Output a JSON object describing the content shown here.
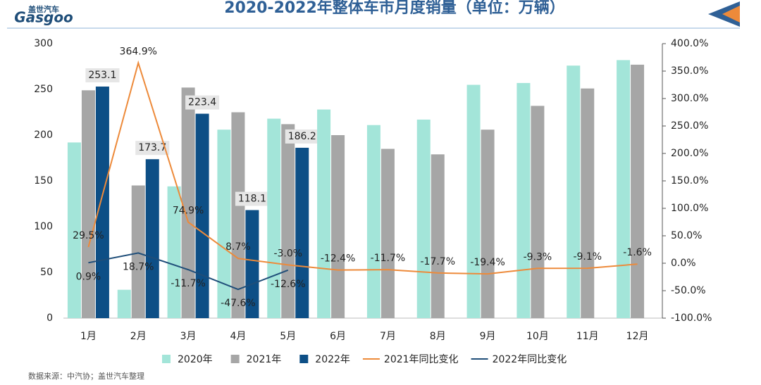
{
  "header": {
    "logo": "Gasgoo",
    "logo_cn": "盖世汽车"
  },
  "chart_data": {
    "type": "bar-line",
    "title": "2020-2022年整体车市月度销量（单位：万辆）",
    "source": "数据来源：中汽协；盖世汽车整理",
    "categories": [
      "1月",
      "2月",
      "3月",
      "4月",
      "5月",
      "6月",
      "7月",
      "8月",
      "9月",
      "10月",
      "11月",
      "12月"
    ],
    "ylim": [
      0,
      300
    ],
    "yticks": [
      0,
      50,
      100,
      150,
      200,
      250,
      300
    ],
    "y2lim": [
      -100,
      400
    ],
    "y2ticks": [
      {
        "value": -100,
        "label": "-100.0%"
      },
      {
        "value": -50,
        "label": "-50.0%"
      },
      {
        "value": 0,
        "label": "0.0%"
      },
      {
        "value": 50,
        "label": "50.0%"
      },
      {
        "value": 100,
        "label": "100.0%"
      },
      {
        "value": 150,
        "label": "150.0%"
      },
      {
        "value": 200,
        "label": "200.0%"
      },
      {
        "value": 250,
        "label": "250.0%"
      },
      {
        "value": 300,
        "label": "300.0%"
      },
      {
        "value": 350,
        "label": "350.0%"
      },
      {
        "value": 400,
        "label": "400.0%"
      }
    ],
    "series": [
      {
        "name": "2020年",
        "kind": "bar",
        "color": "#a3e5d9",
        "values": [
          192,
          31,
          144,
          206,
          218,
          228,
          211,
          217,
          255,
          257,
          276,
          282
        ]
      },
      {
        "name": "2021年",
        "kind": "bar",
        "color": "#a6a6a6",
        "values": [
          249,
          145,
          252,
          225,
          212,
          200,
          185,
          179,
          206,
          232,
          251,
          277
        ]
      },
      {
        "name": "2022年",
        "kind": "bar",
        "color": "#0d4f86",
        "values": [
          253.1,
          173.7,
          223.4,
          118.1,
          186.2,
          null,
          null,
          null,
          null,
          null,
          null,
          null
        ],
        "show_labels": true
      },
      {
        "name": "2021年同比变化",
        "kind": "line",
        "axis": "y2",
        "color": "#ed8a3a",
        "values": [
          29.5,
          364.9,
          74.9,
          8.7,
          -3.0,
          -12.4,
          -11.7,
          -17.7,
          -19.4,
          -9.3,
          -9.1,
          -1.6
        ],
        "value_labels": [
          "29.5%",
          "364.9%",
          "74.9%",
          "8.7%",
          "-3.0%",
          "-12.4%",
          "-11.7%",
          "-17.7%",
          "-19.4%",
          "-9.3%",
          "-9.1%",
          "-1.6%"
        ]
      },
      {
        "name": "2022年同比变化",
        "kind": "line",
        "axis": "y2",
        "color": "#1f4e79",
        "values": [
          0.9,
          18.7,
          -11.7,
          -47.6,
          -12.6,
          null,
          null,
          null,
          null,
          null,
          null,
          null
        ],
        "value_labels": [
          "0.9%",
          "18.7%",
          "-11.7%",
          "-47.6%",
          "-12.6%",
          null,
          null,
          null,
          null,
          null,
          null,
          null
        ]
      }
    ]
  }
}
